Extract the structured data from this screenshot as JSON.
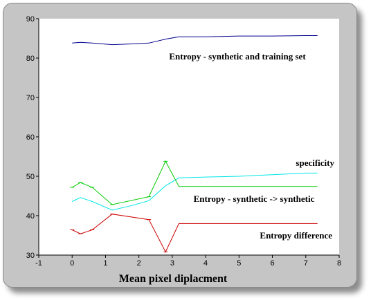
{
  "chart_data": {
    "type": "line",
    "xlabel": "Mean pixel diplacment",
    "ylabel": "",
    "xlim": [
      -1,
      8
    ],
    "ylim": [
      30,
      90
    ],
    "xticks": [
      -1,
      0,
      1,
      2,
      3,
      4,
      5,
      6,
      7,
      8
    ],
    "yticks": [
      30,
      40,
      50,
      60,
      70,
      80,
      90
    ],
    "grid": false,
    "legend": "none",
    "series": [
      {
        "name": "Entropy - synthetic and training set",
        "color": "#00008b",
        "markers": false,
        "x": [
          0,
          0.25,
          0.6,
          1.2,
          1.8,
          2.3,
          2.8,
          3.2,
          4,
          5,
          6,
          7,
          7.35
        ],
        "y": [
          83.8,
          84.0,
          83.8,
          83.4,
          83.6,
          83.8,
          84.8,
          85.4,
          85.4,
          85.6,
          85.6,
          85.7,
          85.7
        ]
      },
      {
        "name": "specificity",
        "color": "#00e5e5",
        "markers": false,
        "x": [
          0,
          0.25,
          0.6,
          1.2,
          1.8,
          2.3,
          2.8,
          3.2,
          4,
          5,
          6,
          7,
          7.35
        ],
        "y": [
          43.6,
          44.6,
          43.6,
          41.4,
          42.6,
          43.8,
          47.6,
          49.6,
          49.8,
          50.0,
          50.4,
          50.8,
          50.8
        ]
      },
      {
        "name": "Entropy - synthetic -> synthetic",
        "color": "#00cc00",
        "markers": true,
        "x": [
          0,
          0.25,
          0.6,
          1.2,
          2.3,
          2.8,
          3.2,
          4,
          5,
          6,
          7,
          7.35
        ],
        "y": [
          47.2,
          48.4,
          47.2,
          42.8,
          44.8,
          53.8,
          47.4,
          47.4,
          47.4,
          47.4,
          47.4,
          47.4
        ]
      },
      {
        "name": "Entropy difference",
        "color": "#cc0000",
        "markers": true,
        "x": [
          0,
          0.25,
          0.6,
          1.2,
          2.3,
          2.8,
          3.2,
          4,
          5,
          6,
          7,
          7.35
        ],
        "y": [
          36.4,
          35.4,
          36.4,
          40.4,
          39.0,
          30.8,
          38.0,
          38.0,
          38.0,
          38.0,
          38.0,
          38.0
        ]
      }
    ],
    "annotations": [
      "Entropy - synthetic and training set",
      "specificity",
      "Entropy - synthetic -> synthetic",
      "Entropy difference"
    ]
  }
}
